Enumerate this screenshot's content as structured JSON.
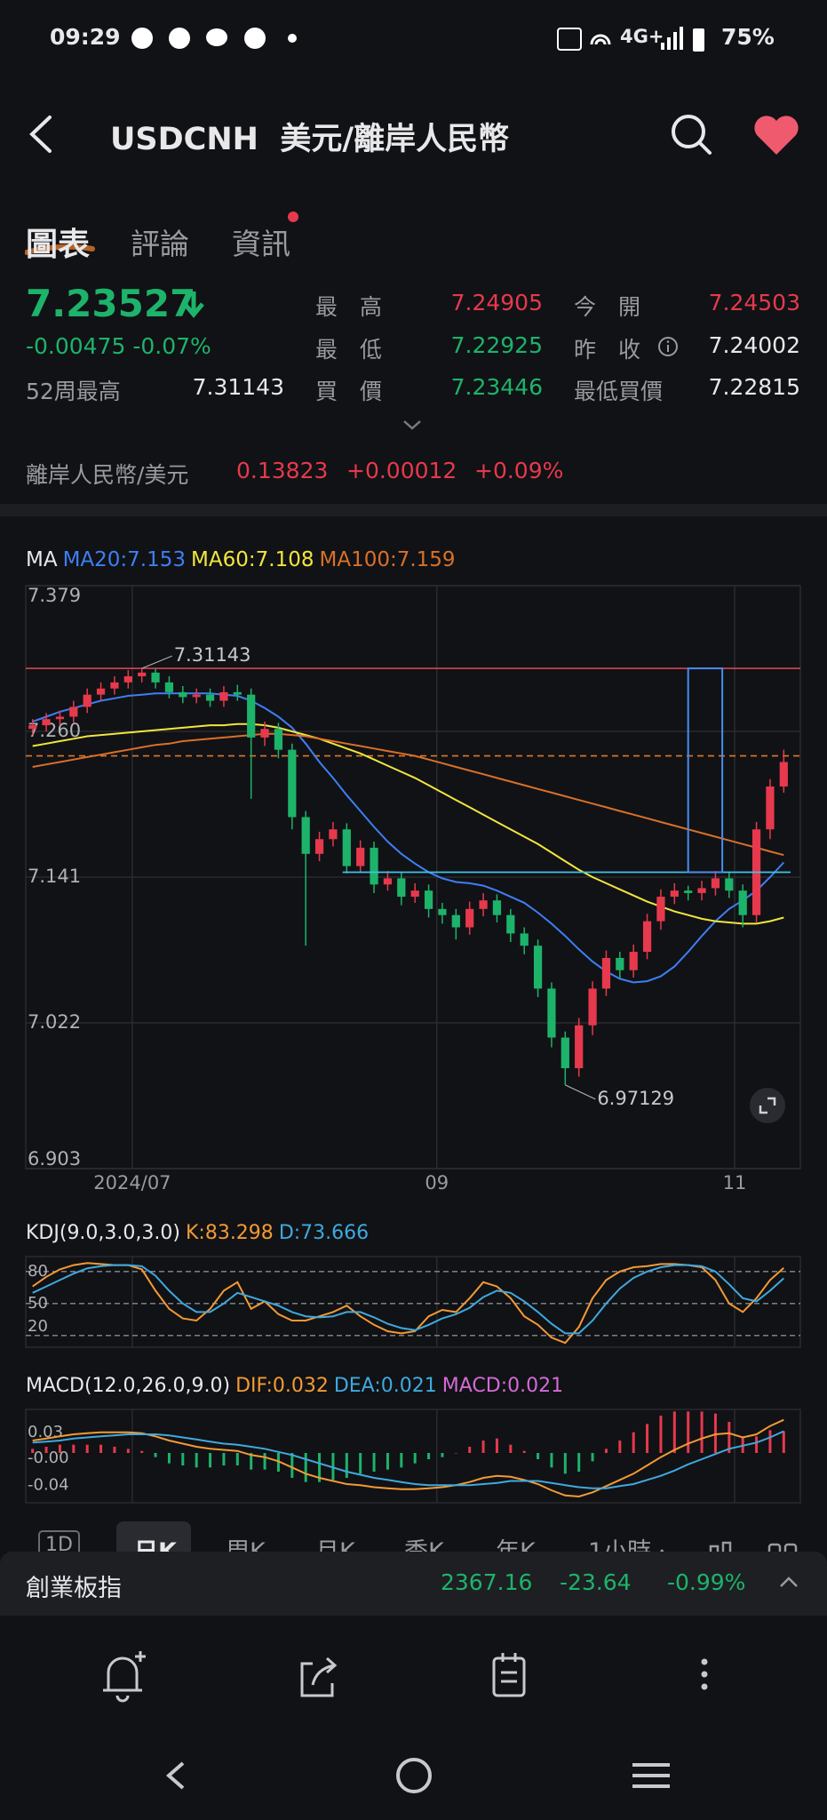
{
  "status_bar": {
    "time": "09:29",
    "network": "4G+",
    "battery": "75%"
  },
  "header": {
    "symbol": "USDCNH",
    "name": "美元/離岸人民幣"
  },
  "tabs": [
    "圖表",
    "評論",
    "資訊"
  ],
  "quote": {
    "price": "7.23527",
    "change": "-0.00475",
    "change_pct": "-0.07%",
    "week52_high": {
      "label": "52周最高",
      "value": "7.31143"
    },
    "stats": [
      {
        "label": "最　高",
        "value": "7.24905"
      },
      {
        "label": "今　開",
        "value": "7.24503"
      },
      {
        "label": "最　低",
        "value": "7.22925"
      },
      {
        "label": "昨　收",
        "value": "7.24002"
      },
      {
        "label": "買　價",
        "value": "7.23446"
      },
      {
        "label": "最低買價",
        "value": "7.22815"
      }
    ]
  },
  "cross_rate": {
    "label": "離岸人民幣/美元",
    "price": "0.13823",
    "change": "+0.00012",
    "change_pct": "+0.09%"
  },
  "chart_data": [
    {
      "type": "candlestick",
      "indicator": "MA",
      "up_color": "#e6394d",
      "down_color": "#1db36b",
      "xlim": [
        0,
        56
      ],
      "xticks": [
        {
          "value": 7.8,
          "label": "2024/07"
        },
        {
          "value": 30.1,
          "label": "09"
        },
        {
          "value": 51.9,
          "label": "11"
        }
      ],
      "ylim": [
        6.903,
        7.379
      ],
      "yticks": [
        7.379,
        {
          "value": 7.26,
          "label": "7.260"
        },
        7.141,
        7.022,
        6.903
      ],
      "grid": true,
      "open": [
        7.262,
        7.265,
        7.27,
        7.272,
        7.28,
        7.29,
        7.295,
        7.3,
        7.305,
        7.308,
        7.3,
        7.292,
        7.288,
        7.29,
        7.285,
        7.292,
        7.29,
        7.255,
        7.262,
        7.245,
        7.19,
        7.16,
        7.172,
        7.18,
        7.15,
        7.165,
        7.135,
        7.14,
        7.125,
        7.13,
        7.115,
        7.11,
        7.1,
        7.115,
        7.122,
        7.11,
        7.095,
        7.085,
        7.05,
        7.01,
        6.985,
        7.02,
        7.05,
        7.075,
        7.065,
        7.08,
        7.105,
        7.125,
        7.13,
        7.128,
        7.132,
        7.14,
        7.13,
        7.11,
        7.18,
        7.215
      ],
      "high": [
        7.27,
        7.275,
        7.277,
        7.285,
        7.295,
        7.3,
        7.305,
        7.31,
        7.31143,
        7.311,
        7.305,
        7.297,
        7.295,
        7.295,
        7.297,
        7.298,
        7.295,
        7.268,
        7.267,
        7.25,
        7.195,
        7.178,
        7.186,
        7.185,
        7.171,
        7.17,
        7.146,
        7.145,
        7.136,
        7.135,
        7.12,
        7.115,
        7.121,
        7.128,
        7.127,
        7.115,
        7.1,
        7.09,
        7.055,
        7.015,
        7.026,
        7.056,
        7.081,
        7.08,
        7.086,
        7.111,
        7.131,
        7.136,
        7.134,
        7.138,
        7.146,
        7.145,
        7.135,
        7.186,
        7.221,
        7.245
      ],
      "low": [
        7.257,
        7.26,
        7.265,
        7.267,
        7.275,
        7.285,
        7.29,
        7.295,
        7.3,
        7.295,
        7.287,
        7.283,
        7.283,
        7.28,
        7.28,
        7.285,
        7.205,
        7.248,
        7.238,
        7.18,
        7.085,
        7.154,
        7.166,
        7.144,
        7.145,
        7.128,
        7.13,
        7.118,
        7.12,
        7.108,
        7.103,
        7.09,
        7.094,
        7.109,
        7.104,
        7.088,
        7.078,
        7.043,
        7.002,
        6.97129,
        6.978,
        7.012,
        7.044,
        7.058,
        7.059,
        7.074,
        7.098,
        7.119,
        7.122,
        7.122,
        7.126,
        7.124,
        7.1,
        7.104,
        7.172,
        7.21
      ],
      "close": [
        7.265,
        7.27,
        7.272,
        7.28,
        7.29,
        7.295,
        7.3,
        7.305,
        7.308,
        7.3,
        7.292,
        7.288,
        7.29,
        7.285,
        7.292,
        7.29,
        7.255,
        7.262,
        7.245,
        7.19,
        7.16,
        7.172,
        7.18,
        7.15,
        7.165,
        7.135,
        7.14,
        7.125,
        7.13,
        7.115,
        7.11,
        7.1,
        7.115,
        7.122,
        7.11,
        7.095,
        7.085,
        7.05,
        7.01,
        6.985,
        7.02,
        7.05,
        7.075,
        7.065,
        7.08,
        7.105,
        7.125,
        7.13,
        7.128,
        7.132,
        7.14,
        7.13,
        7.11,
        7.18,
        7.215,
        7.235
      ],
      "series": [
        {
          "name": "MA20:7.153",
          "color": "#3d7ff5",
          "values": [
            7.268,
            7.272,
            7.276,
            7.279,
            7.282,
            7.285,
            7.287,
            7.289,
            7.29,
            7.291,
            7.291,
            7.291,
            7.291,
            7.291,
            7.29,
            7.289,
            7.285,
            7.279,
            7.272,
            7.263,
            7.25,
            7.235,
            7.222,
            7.208,
            7.195,
            7.182,
            7.17,
            7.16,
            7.152,
            7.145,
            7.14,
            7.137,
            7.136,
            7.134,
            7.13,
            7.125,
            7.12,
            7.112,
            7.103,
            7.093,
            7.082,
            7.072,
            7.064,
            7.058,
            7.055,
            7.056,
            7.06,
            7.068,
            7.08,
            7.093,
            7.105,
            7.115,
            7.122,
            7.13,
            7.141,
            7.153
          ]
        },
        {
          "name": "MA60:7.108",
          "color": "#f2e63d",
          "values": [
            7.248,
            7.25,
            7.252,
            7.254,
            7.256,
            7.257,
            7.258,
            7.259,
            7.26,
            7.261,
            7.262,
            7.263,
            7.264,
            7.265,
            7.265,
            7.266,
            7.266,
            7.265,
            7.263,
            7.26,
            7.257,
            7.254,
            7.25,
            7.246,
            7.242,
            7.237,
            7.232,
            7.227,
            7.222,
            7.216,
            7.21,
            7.204,
            7.198,
            7.192,
            7.186,
            7.18,
            7.174,
            7.168,
            7.161,
            7.154,
            7.147,
            7.141,
            7.136,
            7.131,
            7.126,
            7.121,
            7.117,
            7.113,
            7.11,
            7.107,
            7.105,
            7.104,
            7.103,
            7.103,
            7.105,
            7.108
          ]
        },
        {
          "name": "MA100:7.159",
          "color": "#d9702a",
          "values": [
            7.231,
            7.233,
            7.235,
            7.237,
            7.239,
            7.241,
            7.243,
            7.245,
            7.247,
            7.249,
            7.25,
            7.252,
            7.253,
            7.254,
            7.255,
            7.256,
            7.257,
            7.258,
            7.258,
            7.257,
            7.256,
            7.254,
            7.252,
            7.25,
            7.248,
            7.246,
            7.244,
            7.242,
            7.24,
            7.237,
            7.234,
            7.231,
            7.228,
            7.225,
            7.222,
            7.219,
            7.216,
            7.213,
            7.21,
            7.207,
            7.204,
            7.201,
            7.198,
            7.195,
            7.192,
            7.189,
            7.186,
            7.183,
            7.18,
            7.177,
            7.174,
            7.171,
            7.168,
            7.165,
            7.162,
            7.159
          ]
        }
      ],
      "reference_lines": [
        {
          "value": 7.31143,
          "color": "#e04a5a",
          "dashed": false
        },
        {
          "value": 7.24002,
          "color": "#e0782a",
          "dashed": true
        }
      ],
      "drawings": {
        "hline": {
          "value": 7.145,
          "x": [
            23.2,
            56
          ],
          "color": "#3fc3e8"
        },
        "box": {
          "x": [
            48.5,
            51
          ],
          "y": [
            7.145,
            7.31143
          ],
          "color": "#4a8cf0"
        }
      },
      "annotations": [
        {
          "text": "7.31143",
          "x": 8,
          "y": 7.31143
        },
        {
          "text": "6.97129",
          "x": 39,
          "y": 6.97129
        }
      ]
    },
    {
      "type": "line",
      "indicator": "KDJ(9.0,3.0,3.0)",
      "ylim": [
        9,
        94
      ],
      "yticks": [
        80,
        50,
        20
      ],
      "tick_line": "dashed",
      "series": [
        {
          "name": "K:83.298",
          "color": "#f39a35",
          "values": [
            66,
            75,
            82,
            86,
            88,
            87,
            86,
            86,
            82,
            62,
            45,
            36,
            34,
            45,
            62,
            70,
            45,
            52,
            40,
            34,
            34,
            38,
            42,
            48,
            38,
            30,
            24,
            22,
            24,
            38,
            44,
            42,
            55,
            70,
            66,
            55,
            38,
            30,
            18,
            13,
            28,
            55,
            72,
            80,
            84,
            85,
            87,
            87,
            86,
            84,
            72,
            50,
            42,
            55,
            72,
            83.298
          ]
        },
        {
          "name": "D:73.666",
          "color": "#3fa9e0",
          "values": [
            60,
            66,
            72,
            78,
            83,
            85,
            86,
            86,
            85,
            76,
            62,
            50,
            42,
            42,
            50,
            60,
            56,
            52,
            48,
            42,
            38,
            37,
            38,
            42,
            42,
            37,
            31,
            27,
            25,
            30,
            36,
            40,
            46,
            56,
            62,
            60,
            52,
            42,
            31,
            22,
            22,
            34,
            50,
            64,
            74,
            80,
            84,
            86,
            86,
            85,
            80,
            68,
            55,
            52,
            62,
            73.666
          ]
        }
      ]
    },
    {
      "type": "combo",
      "indicator": "MACD(12.0,26.0,9.0)",
      "ylim": [
        -0.048,
        0.042
      ],
      "yticks": [
        0.03,
        {
          "value": -0.005,
          "label": "-0.00"
        },
        -0.04
      ],
      "series": [
        {
          "name": "DIF:0.032",
          "kind": "line",
          "color": "#f39a35",
          "values": [
            0.012,
            0.014,
            0.016,
            0.018,
            0.019,
            0.02,
            0.02,
            0.02,
            0.019,
            0.016,
            0.012,
            0.009,
            0.006,
            0.004,
            0.003,
            0.002,
            -0.002,
            -0.004,
            -0.008,
            -0.014,
            -0.02,
            -0.024,
            -0.027,
            -0.03,
            -0.031,
            -0.033,
            -0.034,
            -0.035,
            -0.035,
            -0.034,
            -0.033,
            -0.031,
            -0.028,
            -0.024,
            -0.022,
            -0.023,
            -0.026,
            -0.03,
            -0.036,
            -0.041,
            -0.042,
            -0.038,
            -0.032,
            -0.026,
            -0.02,
            -0.012,
            -0.004,
            0.003,
            0.009,
            0.014,
            0.018,
            0.019,
            0.015,
            0.018,
            0.026,
            0.032
          ]
        },
        {
          "name": "DEA:0.021",
          "kind": "line",
          "color": "#3fa9e0",
          "values": [
            0.01,
            0.011,
            0.012,
            0.014,
            0.015,
            0.016,
            0.017,
            0.018,
            0.018,
            0.018,
            0.017,
            0.015,
            0.013,
            0.011,
            0.009,
            0.008,
            0.006,
            0.004,
            0.001,
            -0.002,
            -0.006,
            -0.01,
            -0.014,
            -0.018,
            -0.021,
            -0.024,
            -0.026,
            -0.028,
            -0.03,
            -0.031,
            -0.031,
            -0.031,
            -0.031,
            -0.03,
            -0.029,
            -0.027,
            -0.027,
            -0.027,
            -0.029,
            -0.031,
            -0.033,
            -0.034,
            -0.034,
            -0.032,
            -0.03,
            -0.026,
            -0.022,
            -0.017,
            -0.011,
            -0.006,
            -0.001,
            0.004,
            0.007,
            0.01,
            0.015,
            0.021
          ]
        },
        {
          "name": "MACD:0.021",
          "kind": "bar",
          "color": "#d46ad6",
          "up_color": "#e6394d",
          "down_color": "#1db36b",
          "values": [
            0.004,
            0.006,
            0.008,
            0.008,
            0.008,
            0.008,
            0.006,
            0.004,
            0.002,
            -0.004,
            -0.01,
            -0.012,
            -0.014,
            -0.014,
            -0.012,
            -0.012,
            -0.016,
            -0.016,
            -0.018,
            -0.024,
            -0.028,
            -0.028,
            -0.026,
            -0.024,
            -0.02,
            -0.018,
            -0.016,
            -0.014,
            -0.01,
            -0.006,
            -0.004,
            0.0,
            0.006,
            0.012,
            0.014,
            0.008,
            0.002,
            -0.006,
            -0.014,
            -0.02,
            -0.018,
            -0.008,
            0.004,
            0.012,
            0.02,
            0.028,
            0.036,
            0.04,
            0.04,
            0.04,
            0.038,
            0.03,
            0.016,
            0.016,
            0.022,
            0.021
          ]
        }
      ]
    }
  ],
  "period_tabs": [
    "1D",
    "日K",
    "周K",
    "月K",
    "季K",
    "年K",
    "1小時"
  ],
  "index_bar": {
    "name": "創業板指",
    "price": "2367.16",
    "change": "-23.64",
    "change_pct": "-0.99%"
  }
}
